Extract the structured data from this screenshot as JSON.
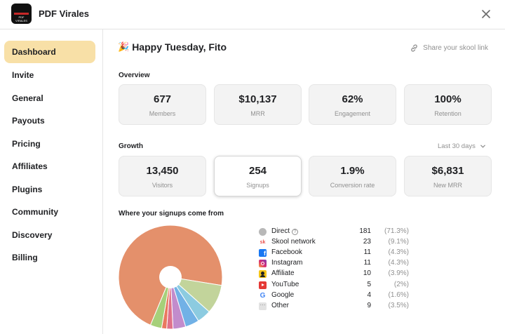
{
  "app": {
    "title": "PDF Virales",
    "logo_text": "PDF VIRALES"
  },
  "sidebar": {
    "items": [
      {
        "label": "Dashboard",
        "active": true
      },
      {
        "label": "Invite"
      },
      {
        "label": "General"
      },
      {
        "label": "Payouts"
      },
      {
        "label": "Pricing"
      },
      {
        "label": "Affiliates"
      },
      {
        "label": "Plugins"
      },
      {
        "label": "Community"
      },
      {
        "label": "Discovery"
      },
      {
        "label": "Billing"
      }
    ]
  },
  "main": {
    "greeting": "Happy Tuesday, Fito",
    "greeting_emoji": "🎉",
    "share_label": "Share your skool link",
    "overview": {
      "title": "Overview",
      "cards": [
        {
          "value": "677",
          "label": "Members"
        },
        {
          "value": "$10,137",
          "label": "MRR"
        },
        {
          "value": "62%",
          "label": "Engagement"
        },
        {
          "value": "100%",
          "label": "Retention"
        }
      ]
    },
    "growth": {
      "title": "Growth",
      "range": "Last 30 days",
      "cards": [
        {
          "value": "13,450",
          "label": "Visitors"
        },
        {
          "value": "254",
          "label": "Signups",
          "selected": true
        },
        {
          "value": "1.9%",
          "label": "Conversion rate"
        },
        {
          "value": "$6,831",
          "label": "New MRR"
        }
      ]
    },
    "sources_title": "Where your signups come from"
  },
  "colors": {
    "active_nav": "#f8e0a7",
    "direct": "#e4906b",
    "skool": "#c2d49b",
    "facebook": "#8ccbe0",
    "instagram": "#71b1e6",
    "affiliate": "#c28ccc",
    "youtube": "#e0718a",
    "google": "#e9795f",
    "other": "#a6d07a"
  },
  "chart_data": {
    "type": "pie",
    "title": "Where your signups come from",
    "slices": [
      {
        "name": "Direct",
        "value": 181,
        "pct": "(71.3%)",
        "color": "#e4906b",
        "icon": "globe-icon"
      },
      {
        "name": "Skool network",
        "value": 23,
        "pct": "(9.1%)",
        "color": "#c2d49b",
        "icon": "skool-icon"
      },
      {
        "name": "Facebook",
        "value": 11,
        "pct": "(4.3%)",
        "color": "#8ccbe0",
        "icon": "facebook-icon"
      },
      {
        "name": "Instagram",
        "value": 11,
        "pct": "(4.3%)",
        "color": "#71b1e6",
        "icon": "instagram-icon"
      },
      {
        "name": "Affiliate",
        "value": 10,
        "pct": "(3.9%)",
        "color": "#c28ccc",
        "icon": "affiliate-icon"
      },
      {
        "name": "YouTube",
        "value": 5,
        "pct": "(2%)",
        "color": "#e0718a",
        "icon": "youtube-icon"
      },
      {
        "name": "Google",
        "value": 4,
        "pct": "(1.6%)",
        "color": "#e9795f",
        "icon": "google-icon"
      },
      {
        "name": "Other",
        "value": 9,
        "pct": "(3.5%)",
        "color": "#a6d07a",
        "icon": "more-icon"
      }
    ]
  }
}
